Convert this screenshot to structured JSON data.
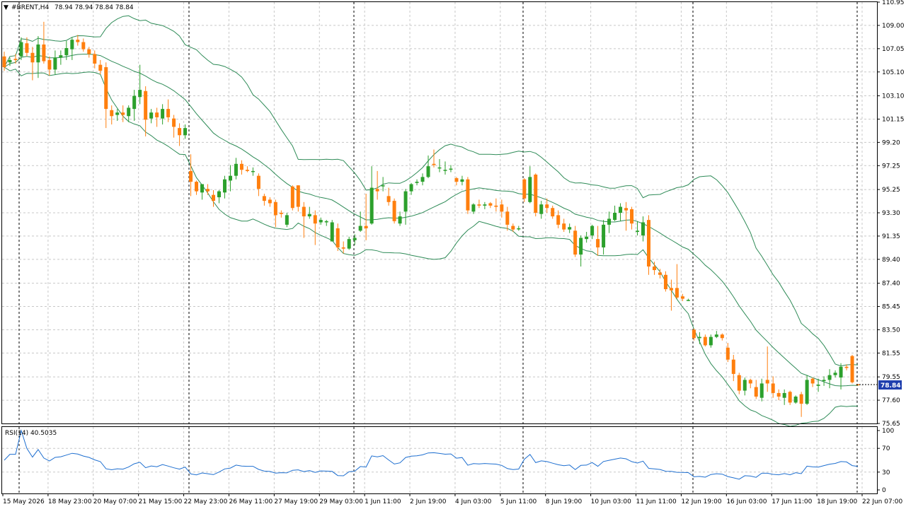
{
  "window": {
    "symbol_line": "#BRENT,H4",
    "ohlc_line": "78.94 78.94 78.84 78.84",
    "current_price": "78.84"
  },
  "rsi": {
    "label": "RSI(14) 40.5035",
    "levels": [
      "100",
      "70",
      "30",
      "0"
    ]
  },
  "colors": {
    "bull": "#2ca02c",
    "bear": "#ff7f0e",
    "bands": "#2e8b57",
    "rsi_line": "#1e6fd0",
    "grid": "#c8c8c8",
    "price_tag": "#1f3fae"
  },
  "chart_data": {
    "type": "candlestick",
    "y_ticks": [
      "110.95",
      "109.00",
      "107.05",
      "105.10",
      "103.10",
      "101.15",
      "99.20",
      "97.25",
      "95.25",
      "93.30",
      "91.35",
      "89.40",
      "87.40",
      "85.45",
      "83.50",
      "81.55",
      "79.55",
      "77.60",
      "75.65"
    ],
    "x_ticks": [
      "15 May 2026",
      "18 May 23:00",
      "20 May 07:00",
      "21 May 15:00",
      "22 May 23:00",
      "26 May 11:00",
      "27 May 19:00",
      "29 May 03:00",
      "1 Jun 11:00",
      "2 Jun 19:00",
      "4 Jun 03:00",
      "5 Jun 11:00",
      "8 Jun 19:00",
      "10 Jun 03:00",
      "11 Jun 11:00",
      "12 Jun 19:00",
      "16 Jun 03:00",
      "17 Jun 11:00",
      "18 Jun 19:00",
      "22 Jun 07:00"
    ],
    "ylim": [
      75.65,
      110.95
    ],
    "candles": [
      [
        106.4,
        106.8,
        105.2,
        105.5
      ],
      [
        105.9,
        106.3,
        105.6,
        106.1
      ],
      [
        106.2,
        106.6,
        105.8,
        106.1
      ],
      [
        106.4,
        108.0,
        106.1,
        107.6
      ],
      [
        107.5,
        108.0,
        106.4,
        106.7
      ],
      [
        106.7,
        107.2,
        104.4,
        105.9
      ],
      [
        105.9,
        108.1,
        104.6,
        107.4
      ],
      [
        107.4,
        109.3,
        105.8,
        106.0
      ],
      [
        106.1,
        106.4,
        104.8,
        105.3
      ],
      [
        105.3,
        106.9,
        104.9,
        106.3
      ],
      [
        106.3,
        106.9,
        105.7,
        106.5
      ],
      [
        106.5,
        107.7,
        106.1,
        107.1
      ],
      [
        107.0,
        108.0,
        106.1,
        107.8
      ],
      [
        107.8,
        108.2,
        107.3,
        107.6
      ],
      [
        107.6,
        107.9,
        106.8,
        107.0
      ],
      [
        107.0,
        107.2,
        106.3,
        106.6
      ],
      [
        106.6,
        106.9,
        105.4,
        105.8
      ],
      [
        105.7,
        106.1,
        104.9,
        105.2
      ],
      [
        105.5,
        105.9,
        100.4,
        102.0
      ],
      [
        101.9,
        102.3,
        100.7,
        101.4
      ],
      [
        101.5,
        102.0,
        101.0,
        101.7
      ],
      [
        101.7,
        102.3,
        100.9,
        101.5
      ],
      [
        101.4,
        102.3,
        100.9,
        102.1
      ],
      [
        102.0,
        103.6,
        101.0,
        103.1
      ],
      [
        103.0,
        105.7,
        102.4,
        103.6
      ],
      [
        103.5,
        103.9,
        99.7,
        101.1
      ],
      [
        101.2,
        102.0,
        100.8,
        101.7
      ],
      [
        101.7,
        102.1,
        100.5,
        101.3
      ],
      [
        101.2,
        102.4,
        100.7,
        102.0
      ],
      [
        102.0,
        102.8,
        100.9,
        101.3
      ],
      [
        101.2,
        101.5,
        99.6,
        100.5
      ],
      [
        100.4,
        100.8,
        98.9,
        99.8
      ],
      [
        99.8,
        100.7,
        99.5,
        100.4
      ],
      [
        96.8,
        98.2,
        94.7,
        95.9
      ],
      [
        95.9,
        96.0,
        94.8,
        95.1
      ],
      [
        95.0,
        95.7,
        94.4,
        95.7
      ],
      [
        95.3,
        95.7,
        94.8,
        95.1
      ],
      [
        94.8,
        95.2,
        93.8,
        94.3
      ],
      [
        94.6,
        95.2,
        94.1,
        95.1
      ],
      [
        95.0,
        96.4,
        94.5,
        96.1
      ],
      [
        96.0,
        97.3,
        95.1,
        96.4
      ],
      [
        96.4,
        97.9,
        96.1,
        97.4
      ],
      [
        97.4,
        97.7,
        96.5,
        96.9
      ],
      [
        96.9,
        97.2,
        96.7,
        96.8
      ],
      [
        96.8,
        97.1,
        96.4,
        96.8
      ],
      [
        96.4,
        96.6,
        94.7,
        95.3
      ],
      [
        94.7,
        94.9,
        93.9,
        94.3
      ],
      [
        94.4,
        94.6,
        93.8,
        94.1
      ],
      [
        94.2,
        94.4,
        92.1,
        93.1
      ],
      [
        93.3,
        93.5,
        92.9,
        93.2
      ],
      [
        92.3,
        93.3,
        92.1,
        93.1
      ],
      [
        95.5,
        95.6,
        93.5,
        93.7
      ],
      [
        95.6,
        95.6,
        93.4,
        93.8
      ],
      [
        93.8,
        94.2,
        91.2,
        93.0
      ],
      [
        93.0,
        93.8,
        92.8,
        93.2
      ],
      [
        93.1,
        93.5,
        90.6,
        92.4
      ],
      [
        92.5,
        92.9,
        92.3,
        92.7
      ],
      [
        92.5,
        92.7,
        92.2,
        92.6
      ],
      [
        90.9,
        92.7,
        90.9,
        92.5
      ],
      [
        92.0,
        92.4,
        90.1,
        90.4
      ],
      [
        90.4,
        90.9,
        89.9,
        90.3
      ],
      [
        90.3,
        91.3,
        90.2,
        91.1
      ],
      [
        91.0,
        91.5,
        90.6,
        91.2
      ],
      [
        91.8,
        93.4,
        91.7,
        92.2
      ],
      [
        92.2,
        94.9,
        91.0,
        92.0
      ],
      [
        92.4,
        97.2,
        92.3,
        95.4
      ],
      [
        95.3,
        96.8,
        94.4,
        95.1
      ],
      [
        95.6,
        96.3,
        95.1,
        95.6
      ],
      [
        94.7,
        95.4,
        93.9,
        94.2
      ],
      [
        94.3,
        94.5,
        92.4,
        92.6
      ],
      [
        92.4,
        93.4,
        92.2,
        93.0
      ],
      [
        93.4,
        95.3,
        92.3,
        95.1
      ],
      [
        95.1,
        95.8,
        94.8,
        95.7
      ],
      [
        95.8,
        96.1,
        95.6,
        95.9
      ],
      [
        95.9,
        96.6,
        95.6,
        96.3
      ],
      [
        96.3,
        98.1,
        96.2,
        97.2
      ],
      [
        97.4,
        98.6,
        97.1,
        97.3
      ],
      [
        97.1,
        97.8,
        96.7,
        97.1
      ],
      [
        96.9,
        97.6,
        96.5,
        96.9
      ],
      [
        97.0,
        97.3,
        96.7,
        97.0
      ],
      [
        96.2,
        96.3,
        95.6,
        95.9
      ],
      [
        95.9,
        96.4,
        95.6,
        96.1
      ],
      [
        96.1,
        96.3,
        93.2,
        93.5
      ],
      [
        93.4,
        94.1,
        93.2,
        94.0
      ],
      [
        94.0,
        94.4,
        93.7,
        93.9
      ],
      [
        93.9,
        94.2,
        93.6,
        94.0
      ],
      [
        94.1,
        94.2,
        93.7,
        93.9
      ],
      [
        93.9,
        94.5,
        93.4,
        93.8
      ],
      [
        94.0,
        94.4,
        92.9,
        93.4
      ],
      [
        93.4,
        93.8,
        91.8,
        92.3
      ],
      [
        92.2,
        92.4,
        91.7,
        91.9
      ],
      [
        92.0,
        92.2,
        91.8,
        92.0
      ],
      [
        96.1,
        96.2,
        94.2,
        94.5
      ],
      [
        94.2,
        97.2,
        94.1,
        96.3
      ],
      [
        96.5,
        96.6,
        93.0,
        93.3
      ],
      [
        93.2,
        94.3,
        92.8,
        94.0
      ],
      [
        94.0,
        94.5,
        93.3,
        93.7
      ],
      [
        93.7,
        93.9,
        92.8,
        93.0
      ],
      [
        93.1,
        93.5,
        92.0,
        92.3
      ],
      [
        92.4,
        92.8,
        91.7,
        91.9
      ],
      [
        91.9,
        92.4,
        91.6,
        92.1
      ],
      [
        91.8,
        92.2,
        89.6,
        89.8
      ],
      [
        89.8,
        91.4,
        88.8,
        91.2
      ],
      [
        91.1,
        91.7,
        90.8,
        91.3
      ],
      [
        91.4,
        92.3,
        91.1,
        92.2
      ],
      [
        91.1,
        92.2,
        89.7,
        90.4
      ],
      [
        90.4,
        92.7,
        89.8,
        92.3
      ],
      [
        92.3,
        93.4,
        91.6,
        92.8
      ],
      [
        92.7,
        93.9,
        92.6,
        93.3
      ],
      [
        93.3,
        94.1,
        92.6,
        93.8
      ],
      [
        93.7,
        94.2,
        91.8,
        93.5
      ],
      [
        93.6,
        93.8,
        91.9,
        92.4
      ],
      [
        91.7,
        92.6,
        91.4,
        91.8
      ],
      [
        91.4,
        93.0,
        90.9,
        92.5
      ],
      [
        92.7,
        93.1,
        88.1,
        88.8
      ],
      [
        88.8,
        89.2,
        88.1,
        88.5
      ],
      [
        88.3,
        88.6,
        87.8,
        88.1
      ],
      [
        88.1,
        88.4,
        86.7,
        86.9
      ],
      [
        87.0,
        87.7,
        85.1,
        86.8
      ],
      [
        87.0,
        89.0,
        86.1,
        86.2
      ],
      [
        86.3,
        86.5,
        85.9,
        86.1
      ],
      [
        86.0,
        86.1,
        85.9,
        86.0
      ],
      [
        83.5,
        83.6,
        82.6,
        82.8
      ],
      [
        82.8,
        83.3,
        82.3,
        82.9
      ],
      [
        82.9,
        83.1,
        82.1,
        82.2
      ],
      [
        82.2,
        83.1,
        82.0,
        82.9
      ],
      [
        82.9,
        83.4,
        82.8,
        83.1
      ],
      [
        83.1,
        83.2,
        82.6,
        82.8
      ],
      [
        82.0,
        82.4,
        80.8,
        81.0
      ],
      [
        81.0,
        81.4,
        79.2,
        79.8
      ],
      [
        79.7,
        79.9,
        78.1,
        78.4
      ],
      [
        78.4,
        79.5,
        78.0,
        79.3
      ],
      [
        79.3,
        79.4,
        78.6,
        79.0
      ],
      [
        78.7,
        79.3,
        77.7,
        77.9
      ],
      [
        77.8,
        79.4,
        77.5,
        79.0
      ],
      [
        79.3,
        82.1,
        78.3,
        79.0
      ],
      [
        79.0,
        79.6,
        77.8,
        78.2
      ],
      [
        78.2,
        78.5,
        77.6,
        77.9
      ],
      [
        77.8,
        78.5,
        77.2,
        78.2
      ],
      [
        78.3,
        78.4,
        77.2,
        77.4
      ],
      [
        77.4,
        78.0,
        77.3,
        77.9
      ],
      [
        78.1,
        78.3,
        76.2,
        77.3
      ],
      [
        77.3,
        79.7,
        77.2,
        79.3
      ],
      [
        79.4,
        79.5,
        78.7,
        79.0
      ],
      [
        78.8,
        79.4,
        78.3,
        78.9
      ],
      [
        79.2,
        79.6,
        78.8,
        79.3
      ],
      [
        79.3,
        80.2,
        78.6,
        79.7
      ],
      [
        79.7,
        80.1,
        79.5,
        79.9
      ],
      [
        79.5,
        80.7,
        78.5,
        80.4
      ],
      [
        80.4,
        80.6,
        80.1,
        80.3
      ],
      [
        81.3,
        81.4,
        79.0,
        79.1
      ],
      [
        78.94,
        78.94,
        78.84,
        78.84
      ]
    ],
    "rsi_ylim": [
      0,
      100
    ],
    "rsi_levels": [
      70,
      30
    ]
  }
}
